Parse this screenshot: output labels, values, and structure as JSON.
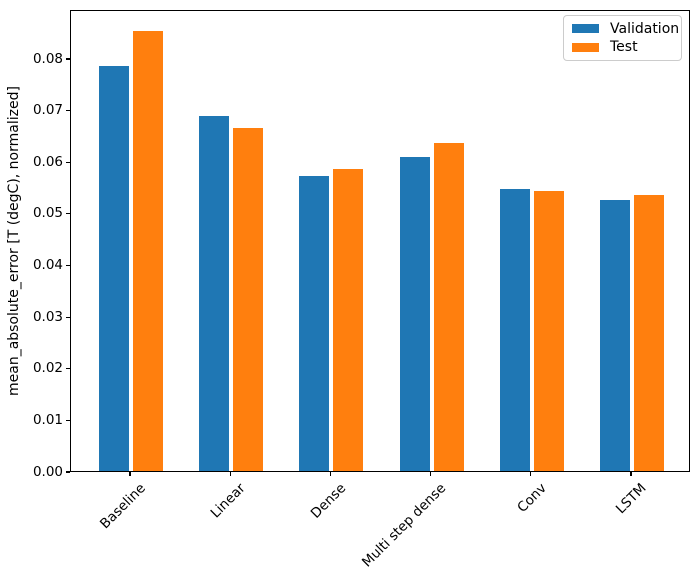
{
  "chart_data": {
    "type": "bar",
    "title": "",
    "xlabel": "",
    "ylabel": "mean_absolute_error [T (degC), normalized]",
    "categories": [
      "Baseline",
      "Linear",
      "Dense",
      "Multi step dense",
      "Conv",
      "LSTM"
    ],
    "series": [
      {
        "name": "Validation",
        "color": "#1f77b4",
        "values": [
          0.0785,
          0.0687,
          0.0572,
          0.0608,
          0.0547,
          0.0525
        ]
      },
      {
        "name": "Test",
        "color": "#ff7f0e",
        "values": [
          0.0852,
          0.0664,
          0.0585,
          0.0636,
          0.0543,
          0.0535
        ]
      }
    ],
    "ylim": [
      0,
      0.0895
    ],
    "yticks": [
      "0.00",
      "0.01",
      "0.02",
      "0.03",
      "0.04",
      "0.05",
      "0.06",
      "0.07",
      "0.08"
    ],
    "ytick_step": 0.01,
    "xtick_rotation": 45,
    "grid": false,
    "legend": {
      "position": "upper right",
      "entries": [
        "Validation",
        "Test"
      ]
    }
  }
}
